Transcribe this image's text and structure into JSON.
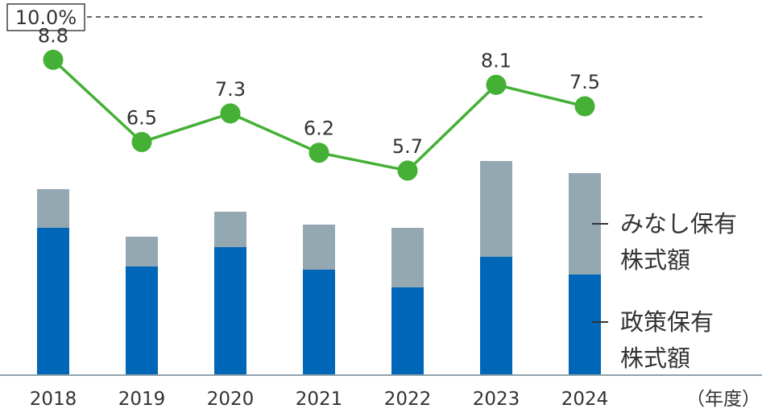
{
  "chart_data": {
    "type": "bar",
    "stacked": true,
    "categories": [
      "2018",
      "2019",
      "2020",
      "2021",
      "2022",
      "2023",
      "2024"
    ],
    "x_unit_label": "（年度）",
    "series": [
      {
        "name": "政策保有株式額",
        "color": "#0066b8",
        "values": [
          182,
          134,
          158,
          130,
          108,
          146,
          124
        ]
      },
      {
        "name": "みなし保有株式額",
        "color": "#94a8b2",
        "values": [
          48,
          37,
          44,
          56,
          74,
          119,
          126
        ]
      }
    ],
    "line_series": {
      "name": "ratio",
      "color": "#44b035",
      "values": [
        8.8,
        6.5,
        7.3,
        6.2,
        5.7,
        8.1,
        7.5
      ],
      "labels": [
        "8.8",
        "6.5",
        "7.3",
        "6.2",
        "5.7",
        "8.1",
        "7.5"
      ],
      "ylim": [
        0,
        10
      ],
      "reference": {
        "value": 10,
        "label": "10.0%"
      }
    },
    "legend": [
      {
        "key": "minashi",
        "lines": [
          "みなし保有",
          "株式額"
        ]
      },
      {
        "key": "seisaku",
        "lines": [
          "政策保有",
          "株式額"
        ]
      }
    ],
    "grid": false
  }
}
